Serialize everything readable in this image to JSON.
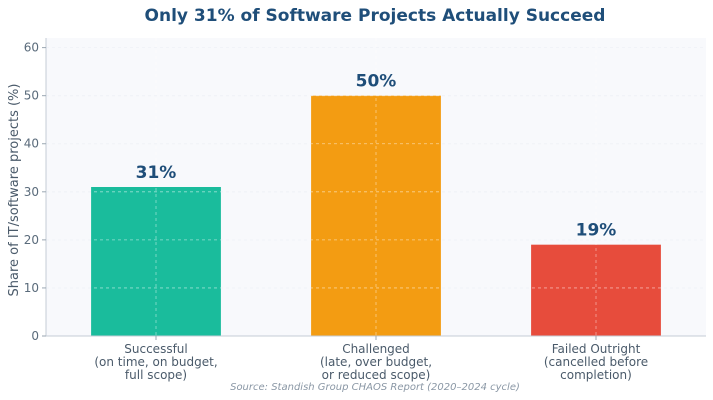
{
  "chart_data": {
    "type": "bar",
    "title": "Only 31% of Software Projects Actually Succeed",
    "ylabel": "Share of IT/software projects (%)",
    "xlabel": "",
    "ylim": [
      0,
      62
    ],
    "yticks": [
      0,
      10,
      20,
      30,
      40,
      50,
      60
    ],
    "grid": true,
    "categories": [
      [
        "Successful",
        "(on time, on budget,",
        "full scope)"
      ],
      [
        "Challenged",
        "(late, over budget,",
        "or reduced scope)"
      ],
      [
        "Failed Outright",
        "(cancelled before",
        "completion)"
      ]
    ],
    "values": [
      31,
      50,
      19
    ],
    "data_labels": [
      "31%",
      "50%",
      "19%"
    ],
    "colors": [
      "#1abc9c",
      "#f39c12",
      "#e74c3c"
    ],
    "source": "Source: Standish Group CHAOS Report (2020–2024 cycle)"
  }
}
